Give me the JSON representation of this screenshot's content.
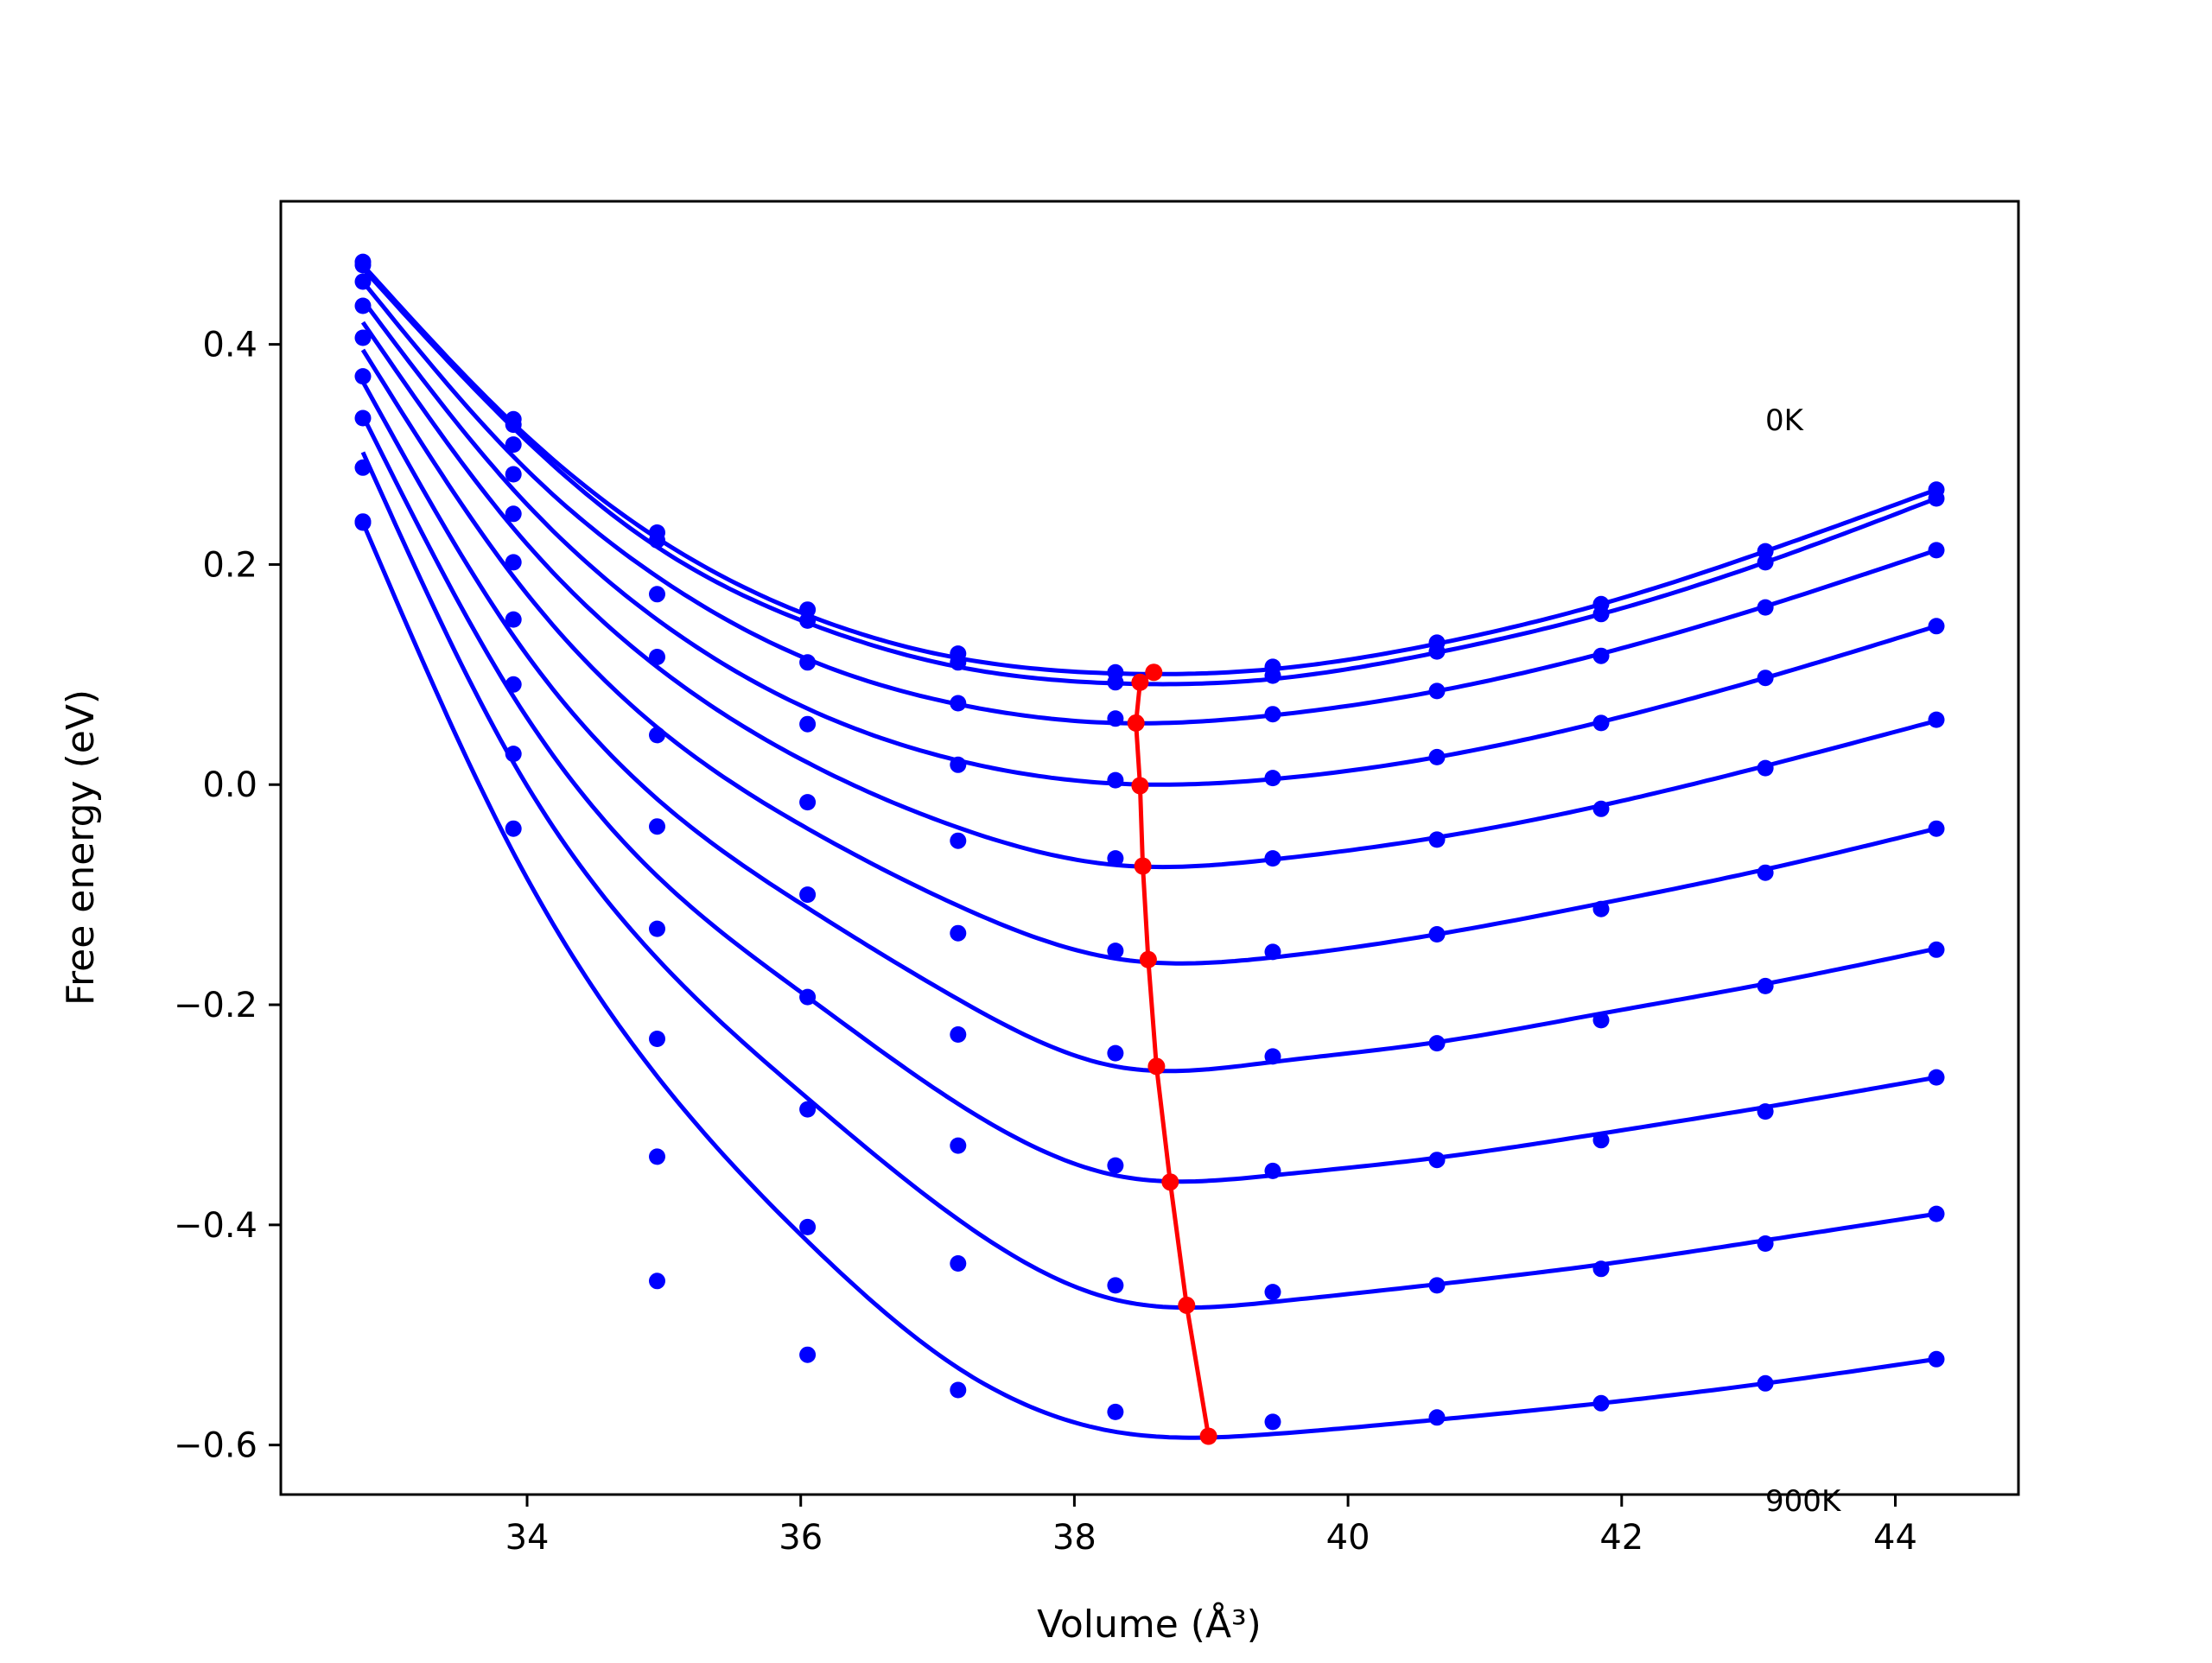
{
  "chart_data": {
    "type": "line",
    "title": "",
    "xlabel": "Volume (Å³)",
    "ylabel": "Free energy (eV)",
    "xlim": [
      32.2,
      44.9
    ],
    "ylim": [
      -0.645,
      0.53
    ],
    "xticks": [
      34,
      36,
      38,
      40,
      42,
      44
    ],
    "xtick_labels": [
      "34",
      "36",
      "38",
      "40",
      "42",
      "44"
    ],
    "yticks": [
      -0.6,
      -0.4,
      -0.2,
      0.0,
      0.2,
      0.4
    ],
    "ytick_labels": [
      "−0.6",
      "−0.4",
      "−0.2",
      "0.0",
      "0.2",
      "0.4"
    ],
    "grid": false,
    "legend": "none",
    "colors": {
      "curve": "#0000ff",
      "points": "#0000ff",
      "minimum_path": "#ff0000",
      "frame": "#000000"
    },
    "annotations": [
      {
        "text": "0K",
        "x": 43.05,
        "y": 0.322
      },
      {
        "text": "900K",
        "x": 43.05,
        "y": -0.66
      }
    ],
    "volumes": [
      32.8,
      33.9,
      34.95,
      36.05,
      37.15,
      38.3,
      39.45,
      40.65,
      41.85,
      43.05,
      44.3
    ],
    "series": [
      {
        "points": [
          0.475,
          0.332,
          0.229,
          0.159,
          0.119,
          0.102,
          0.107,
          0.129,
          0.164,
          0.212,
          0.268
        ],
        "curve": [
          0.472,
          0.328,
          0.224,
          0.154,
          0.115,
          0.101,
          0.105,
          0.128,
          0.164,
          0.212,
          0.268
        ]
      },
      {
        "points": [
          0.472,
          0.327,
          0.222,
          0.149,
          0.111,
          0.093,
          0.099,
          0.121,
          0.155,
          0.202,
          0.26
        ],
        "curve": [
          0.469,
          0.324,
          0.216,
          0.147,
          0.107,
          0.092,
          0.096,
          0.12,
          0.155,
          0.202,
          0.26
        ]
      },
      {
        "points": [
          0.457,
          0.309,
          0.173,
          0.111,
          0.074,
          0.06,
          0.064,
          0.085,
          0.117,
          0.161,
          0.213
        ],
        "curve": [
          0.457,
          0.298,
          0.189,
          0.114,
          0.073,
          0.056,
          0.063,
          0.085,
          0.119,
          0.162,
          0.213
        ]
      },
      {
        "points": [
          0.435,
          0.282,
          0.116,
          0.055,
          0.018,
          0.004,
          0.006,
          0.025,
          0.056,
          0.097,
          0.144
        ],
        "curve": [
          0.44,
          0.268,
          0.15,
          0.069,
          0.022,
          0.001,
          0.005,
          0.025,
          0.057,
          0.097,
          0.144
        ]
      },
      {
        "points": [
          0.406,
          0.246,
          0.045,
          -0.016,
          -0.051,
          -0.067,
          -0.067,
          -0.05,
          -0.022,
          0.015,
          0.059
        ],
        "curve": [
          0.42,
          0.233,
          0.107,
          0.02,
          -0.039,
          -0.073,
          -0.068,
          -0.048,
          -0.019,
          0.017,
          0.058
        ]
      },
      {
        "points": [
          0.371,
          0.202,
          -0.038,
          -0.1,
          -0.135,
          -0.151,
          -0.152,
          -0.136,
          -0.113,
          -0.08,
          -0.04
        ],
        "curve": [
          0.395,
          0.189,
          0.052,
          -0.04,
          -0.11,
          -0.158,
          -0.157,
          -0.136,
          -0.108,
          -0.077,
          -0.04
        ]
      },
      {
        "points": [
          0.333,
          0.15,
          -0.131,
          -0.193,
          -0.227,
          -0.244,
          -0.247,
          -0.235,
          -0.214,
          -0.183,
          -0.15
        ],
        "curve": [
          0.366,
          0.135,
          -0.013,
          -0.112,
          -0.195,
          -0.256,
          -0.252,
          -0.234,
          -0.208,
          -0.181,
          -0.149
        ]
      },
      {
        "points": [
          0.288,
          0.091,
          -0.231,
          -0.295,
          -0.328,
          -0.346,
          -0.351,
          -0.341,
          -0.323,
          -0.297,
          -0.266
        ],
        "curve": [
          0.335,
          0.08,
          -0.083,
          -0.193,
          -0.29,
          -0.355,
          -0.355,
          -0.339,
          -0.317,
          -0.293,
          -0.266
        ]
      },
      {
        "points": [
          0.239,
          0.028,
          -0.338,
          -0.402,
          -0.435,
          -0.455,
          -0.461,
          -0.455,
          -0.44,
          -0.417,
          -0.39
        ],
        "curve": [
          0.302,
          0.02,
          -0.158,
          -0.285,
          -0.395,
          -0.468,
          -0.47,
          -0.454,
          -0.436,
          -0.414,
          -0.39
        ]
      },
      {
        "points": [
          0.238,
          -0.04,
          -0.451,
          -0.518,
          -0.55,
          -0.57,
          -0.579,
          -0.575,
          -0.562,
          -0.544,
          -0.522
        ],
        "curve": [
          0.238,
          -0.062,
          -0.265,
          -0.415,
          -0.53,
          -0.588,
          -0.59,
          -0.577,
          -0.562,
          -0.544,
          -0.522
        ]
      }
    ],
    "minimum_path": {
      "x": [
        38.58,
        38.48,
        38.45,
        38.48,
        38.5,
        38.54,
        38.6,
        38.7,
        38.82,
        38.98
      ],
      "y": [
        0.102,
        0.093,
        0.056,
        -0.001,
        -0.074,
        -0.159,
        -0.256,
        -0.361,
        -0.473,
        -0.592
      ]
    }
  }
}
